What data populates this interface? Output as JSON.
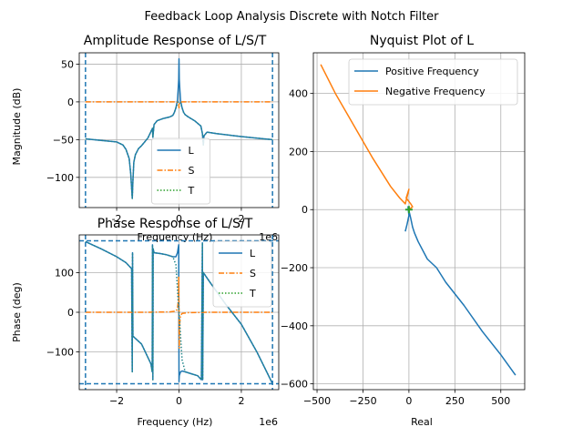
{
  "suptitle": "Feedback Loop Analysis Discrete with Notch Filter",
  "colors": {
    "L": "#1f77b4",
    "S": "#ff7f0e",
    "T": "#2ca02c",
    "T_overlap": "#24878c",
    "boundary": "#1f77b4",
    "grid": "#b0b0b0"
  },
  "chart_data": [
    {
      "type": "line",
      "title": "Amplitude Response of L/S/T",
      "xlabel": "Frequency (Hz)",
      "ylabel": "Magnitude (dB)",
      "x_multiplier": "1e6",
      "xlim": [
        -3.2,
        3.2
      ],
      "ylim": [
        -140,
        65
      ],
      "x_unit_scale": 1000000,
      "xticks": [
        -2,
        0,
        2
      ],
      "xtick_labels": [
        "-2",
        "0",
        "2"
      ],
      "yticks": [
        50,
        0,
        -50,
        -100
      ],
      "ytick_labels": [
        "50",
        "0",
        "−50",
        "−100"
      ],
      "grid": true,
      "legend_position": "lower-center",
      "boundary_lines_x": [
        -3.0,
        3.0
      ],
      "series": [
        {
          "name": "L",
          "style": "solid",
          "x": [
            -3.0,
            -2.5,
            -2.0,
            -1.8,
            -1.7,
            -1.6,
            -1.55,
            -1.5,
            -1.48,
            -1.45,
            -1.4,
            -1.3,
            -1.2,
            -1.0,
            -0.85,
            -0.84,
            -0.8,
            -0.7,
            -0.5,
            -0.3,
            -0.2,
            -0.15,
            -0.1,
            -0.05,
            -0.03,
            -0.01,
            0.0,
            0.01,
            0.03,
            0.05,
            0.1,
            0.15,
            0.2,
            0.3,
            0.5,
            0.7,
            0.75,
            0.78,
            0.8,
            0.9,
            1.2,
            1.6,
            2.0,
            2.5,
            3.0
          ],
          "y": [
            -49,
            -51,
            -53,
            -57,
            -63,
            -75,
            -95,
            -128,
            -105,
            -80,
            -70,
            -62,
            -58,
            -48,
            -35,
            -47,
            -30,
            -25,
            -22,
            -20,
            -18,
            -14,
            -8,
            2,
            15,
            30,
            57,
            30,
            15,
            2,
            -8,
            -14,
            -17,
            -20,
            -25,
            -32,
            -42,
            -57,
            -45,
            -40,
            -42,
            -44,
            -46,
            -48,
            -50
          ]
        },
        {
          "name": "S",
          "style": "dashdot",
          "x": [
            -3.0,
            -1.0,
            -0.1,
            -0.03,
            -0.01,
            0.0,
            0.01,
            0.03,
            0.1,
            1.0,
            3.0
          ],
          "y": [
            0,
            0,
            0,
            -1,
            -3,
            -8,
            -3,
            -1,
            0,
            0,
            0
          ]
        },
        {
          "name": "T",
          "style": "dotted",
          "x": [
            -3.0,
            -2.5,
            -2.0,
            -1.8,
            -1.7,
            -1.6,
            -1.55,
            -1.5,
            -1.48,
            -1.45,
            -1.4,
            -1.3,
            -1.2,
            -1.0,
            -0.85,
            -0.84,
            -0.8,
            -0.7,
            -0.5,
            -0.3,
            -0.2,
            -0.15,
            -0.1,
            -0.05,
            -0.03,
            -0.01,
            0.0,
            0.01,
            0.03,
            0.05,
            0.1,
            0.15,
            0.2,
            0.3,
            0.5,
            0.7,
            0.75,
            0.78,
            0.8,
            0.9,
            1.2,
            1.6,
            2.0,
            2.5,
            3.0
          ],
          "y": [
            -49,
            -51,
            -53,
            -57,
            -63,
            -75,
            -95,
            -128,
            -105,
            -80,
            -70,
            -62,
            -58,
            -48,
            -35,
            -47,
            -30,
            -25,
            -22,
            -20,
            -18,
            -14,
            -8,
            -2,
            0,
            0,
            0,
            0,
            0,
            -2,
            -8,
            -14,
            -17,
            -20,
            -25,
            -32,
            -42,
            -57,
            -45,
            -40,
            -42,
            -44,
            -46,
            -48,
            -50
          ]
        }
      ]
    },
    {
      "type": "line",
      "title": "Phase Response of L/S/T",
      "xlabel": "Frequency (Hz)",
      "ylabel": "Phase (deg)",
      "x_multiplier": "1e6",
      "xlim": [
        -3.2,
        3.2
      ],
      "ylim": [
        -195,
        195
      ],
      "x_unit_scale": 1000000,
      "xticks": [
        -2,
        0,
        2
      ],
      "xtick_labels": [
        "−2",
        "0",
        "2"
      ],
      "yticks": [
        100,
        0,
        -100
      ],
      "ytick_labels": [
        "100",
        "0",
        "−100"
      ],
      "grid": true,
      "legend_position": "upper-right",
      "boundary_lines_x": [
        -3.0,
        3.0
      ],
      "boundary_lines_y": [
        180,
        -180
      ],
      "series": [
        {
          "name": "L",
          "style": "solid",
          "x": [
            -3.0,
            -2.5,
            -2.0,
            -1.7,
            -1.52,
            -1.5,
            -1.49,
            -1.48,
            -1.2,
            -0.9,
            -0.86,
            -0.85,
            -0.84,
            -0.83,
            -0.8,
            -0.6,
            -0.4,
            -0.2,
            -0.1,
            -0.05,
            -0.01,
            0.0,
            0.01,
            0.05,
            0.1,
            0.2,
            0.4,
            0.6,
            0.72,
            0.75,
            0.76,
            0.78,
            1.0,
            1.5,
            2.0,
            2.5,
            3.0
          ],
          "y": [
            178,
            160,
            140,
            125,
            110,
            -150,
            150,
            -60,
            -80,
            -130,
            -150,
            170,
            -170,
            160,
            150,
            148,
            145,
            140,
            140,
            150,
            170,
            -175,
            -160,
            -150,
            -148,
            -150,
            -155,
            -160,
            -170,
            175,
            -170,
            100,
            75,
            20,
            -30,
            -100,
            -180
          ]
        },
        {
          "name": "S",
          "style": "dashdot",
          "x": [
            -3.0,
            -1.0,
            -0.3,
            -0.1,
            -0.05,
            -0.02,
            -0.01,
            0.0,
            0.01,
            0.02,
            0.05,
            0.1,
            0.3,
            1.0,
            3.0
          ],
          "y": [
            0,
            0,
            1,
            3,
            8,
            30,
            90,
            0,
            -90,
            -30,
            -8,
            -3,
            -1,
            0,
            0
          ]
        },
        {
          "name": "T",
          "style": "dotted",
          "x": [
            -3.0,
            -2.5,
            -2.0,
            -1.7,
            -1.52,
            -1.5,
            -1.49,
            -1.48,
            -1.2,
            -0.9,
            -0.86,
            -0.85,
            -0.84,
            -0.83,
            -0.8,
            -0.6,
            -0.4,
            -0.2,
            -0.1,
            -0.05,
            -0.02,
            0.0,
            0.02,
            0.05,
            0.1,
            0.2,
            0.4,
            0.6,
            0.72,
            0.75,
            0.76,
            0.78,
            1.0,
            1.5,
            2.0,
            2.5,
            3.0
          ],
          "y": [
            178,
            160,
            140,
            125,
            110,
            -150,
            150,
            -60,
            -80,
            -130,
            -150,
            170,
            -170,
            160,
            150,
            148,
            145,
            140,
            120,
            60,
            20,
            0,
            -20,
            -60,
            -120,
            -150,
            -155,
            -160,
            -170,
            175,
            -170,
            100,
            75,
            20,
            -30,
            -100,
            -180
          ]
        }
      ]
    },
    {
      "type": "line",
      "title": "Nyquist Plot of L",
      "xlabel": "Real",
      "ylabel": "",
      "xlim": [
        -520,
        630
      ],
      "ylim": [
        -620,
        540
      ],
      "xticks": [
        -500,
        -250,
        0,
        250,
        500
      ],
      "xtick_labels": [
        "−500",
        "−250",
        "0",
        "250",
        "500"
      ],
      "yticks": [
        400,
        200,
        0,
        -200,
        -400,
        -600
      ],
      "ytick_labels": [
        "400",
        "200",
        "0",
        "−200",
        "−400",
        "−600"
      ],
      "grid": true,
      "legend_position": "upper-right",
      "series": [
        {
          "name": "Positive Frequency",
          "style": "solid",
          "x": [
            -20,
            -10,
            0,
            -5,
            10,
            20,
            30,
            50,
            100,
            150,
            200,
            300,
            400,
            500,
            580
          ],
          "y": [
            -75,
            -50,
            -20,
            10,
            -30,
            -60,
            -80,
            -110,
            -170,
            -200,
            -250,
            -330,
            -420,
            -500,
            -570
          ]
        },
        {
          "name": "Negative Frequency",
          "style": "solid",
          "x": [
            -480,
            -400,
            -300,
            -200,
            -100,
            -50,
            -20,
            0,
            -15,
            10,
            20,
            0
          ],
          "y": [
            500,
            400,
            290,
            180,
            80,
            40,
            20,
            70,
            40,
            20,
            10,
            0
          ]
        }
      ],
      "markers": [
        {
          "x": 0,
          "y": 0,
          "symbol": "+"
        }
      ]
    }
  ]
}
